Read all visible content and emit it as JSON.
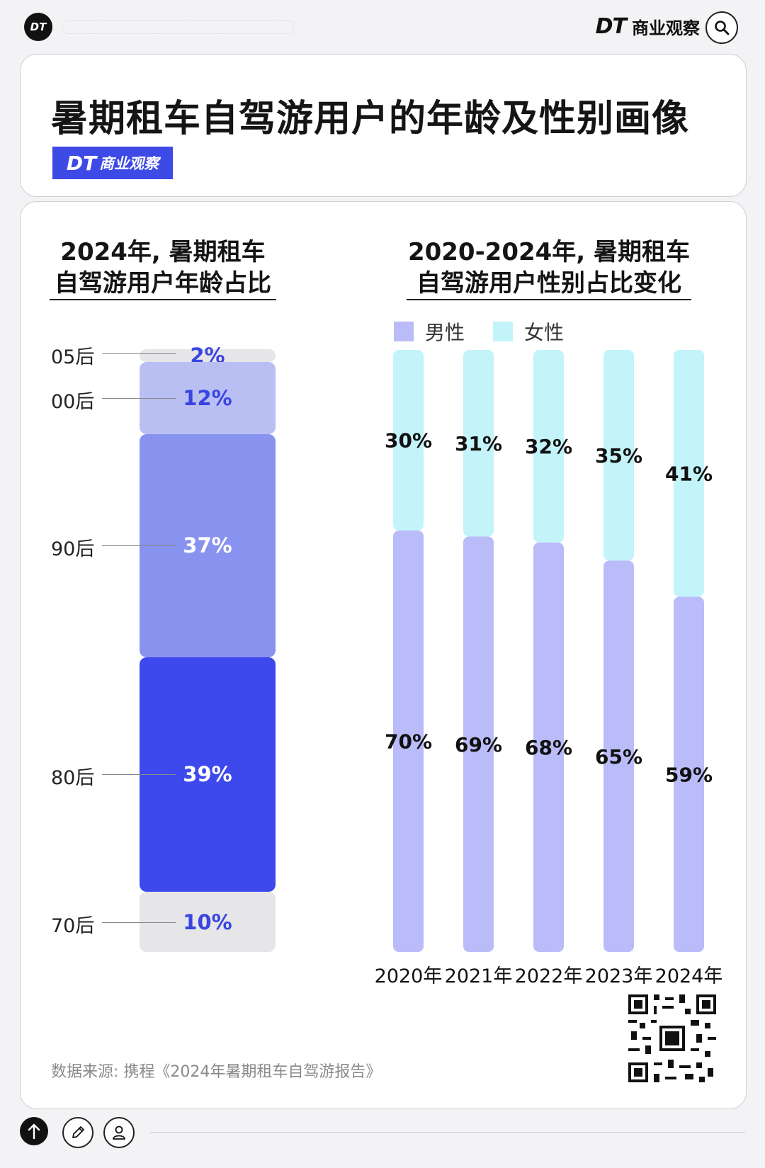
{
  "header": {
    "logo_text": "DT",
    "brand_dt": "DT",
    "brand_name": "商业观察"
  },
  "title": "暑期租车自驾游用户的年龄及性别画像",
  "badge": {
    "dt": "DT",
    "name": "商业观察"
  },
  "left_chart": {
    "title_line1": "2024年, 暑期租车",
    "title_line2": "自驾游用户年龄占比"
  },
  "right_chart": {
    "title_line1": "2020-2024年, 暑期租车",
    "title_line2": "自驾游用户性别占比变化",
    "legend_male": "男性",
    "legend_female": "女性"
  },
  "chart_data": [
    {
      "type": "bar",
      "stacked": true,
      "title": "2024年, 暑期租车自驾游用户年龄占比",
      "categories": [
        "05后",
        "00后",
        "90后",
        "80后",
        "70后"
      ],
      "values": [
        2,
        12,
        37,
        39,
        10
      ],
      "labels": [
        "2%",
        "12%",
        "37%",
        "39%",
        "10%"
      ],
      "colors": [
        "#e6e6e9",
        "#b9bff2",
        "#8892ef",
        "#3d49ec",
        "#e6e6e9"
      ],
      "label_colors": [
        "#3a45e0",
        "#3a45e0",
        "#ffffff",
        "#ffffff",
        "#3a45e0"
      ]
    },
    {
      "type": "bar",
      "stacked": true,
      "title": "2020-2024年, 暑期租车自驾游用户性别占比变化",
      "categories": [
        "2020年",
        "2021年",
        "2022年",
        "2023年",
        "2024年"
      ],
      "series": [
        {
          "name": "男性",
          "values": [
            70,
            69,
            68,
            65,
            59
          ],
          "labels": [
            "70%",
            "69%",
            "68%",
            "65%",
            "59%"
          ],
          "color": "#babcf9"
        },
        {
          "name": "女性",
          "values": [
            30,
            31,
            32,
            35,
            41
          ],
          "labels": [
            "30%",
            "31%",
            "32%",
            "35%",
            "41%"
          ],
          "color": "#c3f4f9"
        }
      ],
      "ylim": [
        0,
        100
      ],
      "legend": "top-left"
    }
  ],
  "source": "数据来源: 携程《2024年暑期租车自驾游报告》"
}
